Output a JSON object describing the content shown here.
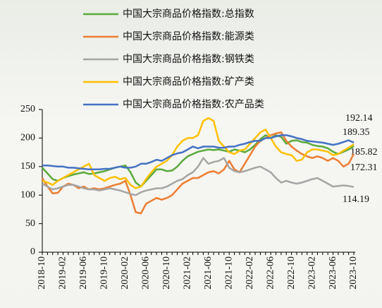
{
  "chart_data": {
    "type": "line",
    "categories": [
      "2018-10",
      null,
      null,
      null,
      "2019-02",
      null,
      null,
      null,
      "2019-06",
      null,
      null,
      null,
      "2019-10",
      null,
      null,
      null,
      "2020-02",
      null,
      null,
      null,
      "2020-06",
      null,
      null,
      null,
      "2020-10",
      null,
      null,
      null,
      "2021-02",
      null,
      null,
      null,
      "2021-06",
      null,
      null,
      null,
      "2021-10",
      null,
      null,
      null,
      "2022-02",
      null,
      null,
      null,
      "2022-06",
      null,
      null,
      null,
      "2022-10",
      null,
      null,
      null,
      "2023-02",
      null,
      null,
      null,
      "2023-06",
      null,
      null,
      null,
      "2023-10"
    ],
    "ylim": [
      0,
      250
    ],
    "yticks": [
      0,
      50,
      100,
      150,
      200,
      250
    ],
    "series": [
      {
        "name": "中国大宗商品价格指数:总指数",
        "color": "#5aaa3c",
        "values": [
          148,
          138,
          128,
          125,
          130,
          133,
          136,
          138,
          140,
          137,
          138,
          140,
          142,
          145,
          148,
          150,
          152,
          140,
          122,
          115,
          125,
          135,
          145,
          145,
          142,
          143,
          150,
          160,
          168,
          172,
          176,
          178,
          180,
          179,
          180,
          178,
          176,
          180,
          178,
          175,
          180,
          188,
          198,
          205,
          200,
          205,
          202,
          190,
          195,
          196,
          193,
          192,
          188,
          186,
          185,
          182,
          176,
          172,
          176,
          180,
          185.82
        ]
      },
      {
        "name": "中国大宗商品价格指数:能源类",
        "color": "#ed7d31",
        "values": [
          130,
          115,
          103,
          104,
          115,
          120,
          118,
          112,
          115,
          110,
          112,
          110,
          112,
          115,
          118,
          120,
          125,
          100,
          70,
          68,
          85,
          90,
          95,
          92,
          95,
          100,
          110,
          120,
          125,
          130,
          130,
          135,
          140,
          142,
          138,
          145,
          160,
          145,
          140,
          155,
          170,
          185,
          195,
          200,
          205,
          208,
          210,
          195,
          185,
          178,
          172,
          168,
          165,
          168,
          165,
          160,
          165,
          160,
          150,
          155,
          172.31
        ]
      },
      {
        "name": "中国大宗商品价格指数:钢铁类",
        "color": "#a5a5a5",
        "values": [
          120,
          115,
          110,
          112,
          115,
          118,
          118,
          115,
          112,
          110,
          110,
          108,
          110,
          112,
          110,
          108,
          105,
          102,
          100,
          105,
          108,
          110,
          112,
          112,
          115,
          120,
          125,
          128,
          135,
          140,
          150,
          165,
          155,
          158,
          160,
          165,
          148,
          142,
          140,
          142,
          145,
          148,
          150,
          145,
          140,
          130,
          122,
          125,
          122,
          120,
          122,
          125,
          128,
          130,
          125,
          120,
          115,
          116,
          117,
          116,
          114.19
        ]
      },
      {
        "name": "中国大宗商品价格指数:矿产类",
        "color": "#ffc000",
        "values": [
          125,
          122,
          118,
          125,
          130,
          135,
          140,
          145,
          150,
          155,
          135,
          130,
          125,
          130,
          132,
          128,
          130,
          118,
          112,
          115,
          128,
          140,
          150,
          155,
          160,
          170,
          185,
          195,
          200,
          200,
          205,
          230,
          235,
          230,
          195,
          185,
          175,
          172,
          178,
          180,
          190,
          200,
          210,
          215,
          200,
          185,
          175,
          172,
          170,
          160,
          162,
          175,
          180,
          180,
          178,
          176,
          170,
          172,
          178,
          183,
          189.35
        ]
      },
      {
        "name": "中国大宗商品价格指数:农产品类",
        "color": "#4472c4",
        "values": [
          152,
          152,
          151,
          150,
          150,
          148,
          148,
          147,
          146,
          145,
          145,
          145,
          146,
          146,
          148,
          150,
          148,
          148,
          150,
          155,
          155,
          158,
          162,
          160,
          165,
          170,
          173,
          175,
          180,
          185,
          182,
          185,
          185,
          185,
          183,
          183,
          185,
          185,
          188,
          190,
          193,
          195,
          195,
          200,
          200,
          203,
          205,
          205,
          203,
          200,
          198,
          195,
          194,
          193,
          192,
          190,
          188,
          190,
          193,
          196,
          192.14
        ]
      }
    ]
  }
}
